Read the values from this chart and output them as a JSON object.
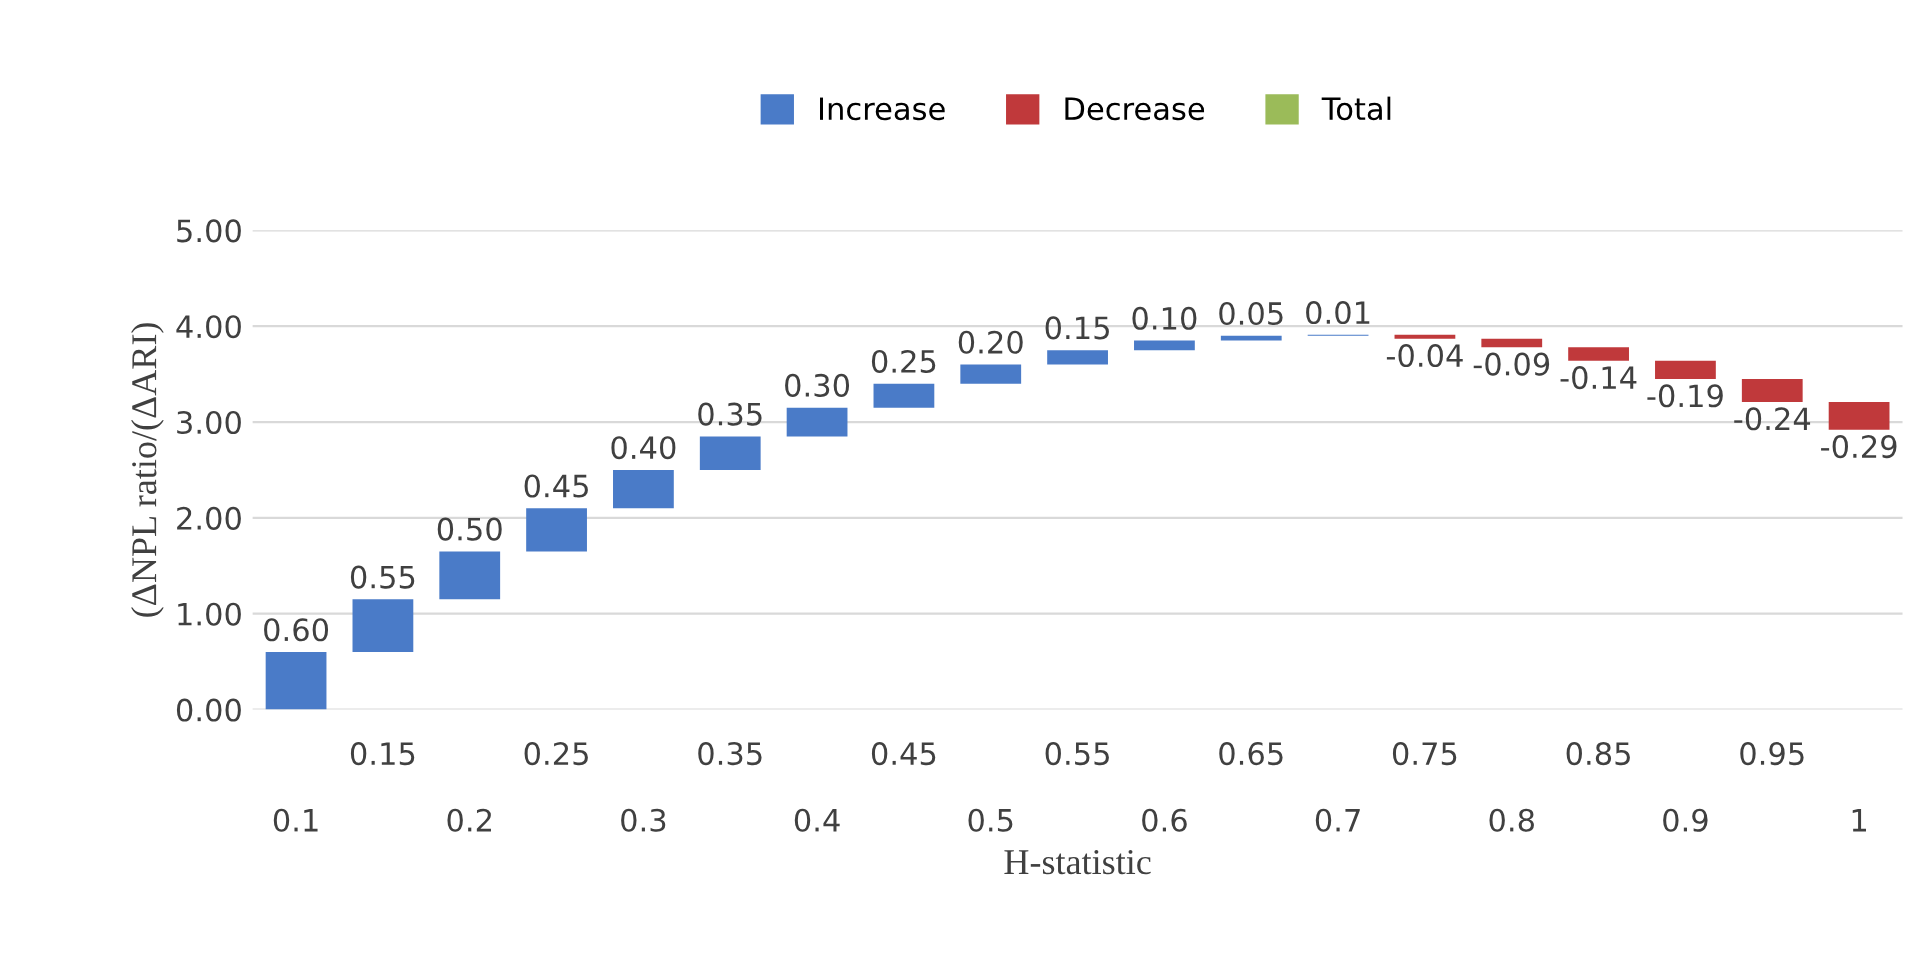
{
  "chart_data": {
    "type": "bar",
    "xlabel": "H-statistic",
    "ylabel": "(ΔNPL ratio/(ΔARI)",
    "categories": [
      "0.1",
      "0.15",
      "0.2",
      "0.25",
      "0.3",
      "0.35",
      "0.4",
      "0.45",
      "0.5",
      "0.55",
      "0.6",
      "0.65",
      "0.7",
      "0.75",
      "0.8",
      "0.85",
      "0.9",
      "0.95",
      "1"
    ],
    "series": [
      {
        "name": "Increase",
        "color": "#4a7bc8",
        "base": [
          0,
          0.6,
          1.15,
          1.65,
          2.1,
          2.5,
          2.85,
          3.15,
          3.4,
          3.6,
          3.75,
          3.85,
          3.9,
          null,
          null,
          null,
          null,
          null,
          null
        ],
        "values": [
          0.6,
          0.55,
          0.5,
          0.45,
          0.4,
          0.35,
          0.3,
          0.25,
          0.2,
          0.15,
          0.1,
          0.05,
          0.01,
          null,
          null,
          null,
          null,
          null,
          null
        ],
        "value_labels": [
          "0.60",
          "0.55",
          "0.50",
          "0.45",
          "0.40",
          "0.35",
          "0.30",
          "0.25",
          "0.20",
          "0.15",
          "0.10",
          "0.05",
          "0.01",
          null,
          null,
          null,
          null,
          null,
          null
        ]
      },
      {
        "name": "Decrease",
        "color": "#c0393b",
        "base": [
          null,
          null,
          null,
          null,
          null,
          null,
          null,
          null,
          null,
          null,
          null,
          null,
          null,
          3.91,
          3.87,
          3.78,
          3.64,
          3.45,
          3.21
        ],
        "values": [
          null,
          null,
          null,
          null,
          null,
          null,
          null,
          null,
          null,
          null,
          null,
          null,
          null,
          -0.04,
          -0.09,
          -0.14,
          -0.19,
          -0.24,
          -0.29
        ],
        "value_labels": [
          null,
          null,
          null,
          null,
          null,
          null,
          null,
          null,
          null,
          null,
          null,
          null,
          null,
          "-0.04",
          "-0.09",
          "-0.14",
          "-0.19",
          "-0.24",
          "-0.29"
        ]
      },
      {
        "name": "Total",
        "color": "#9bbb59",
        "values": [
          null,
          null,
          null,
          null,
          null,
          null,
          null,
          null,
          null,
          null,
          null,
          null,
          null,
          null,
          null,
          null,
          null,
          null,
          null
        ]
      }
    ],
    "ylim": [
      0,
      5
    ],
    "yticks": [
      {
        "value": 0,
        "label": "0.00"
      },
      {
        "value": 1,
        "label": "1.00"
      },
      {
        "value": 2,
        "label": "2.00"
      },
      {
        "value": 3,
        "label": "3.00"
      },
      {
        "value": 4,
        "label": "4.00"
      },
      {
        "value": 5,
        "label": "5.00"
      }
    ],
    "grid": "y",
    "legend": "top"
  }
}
